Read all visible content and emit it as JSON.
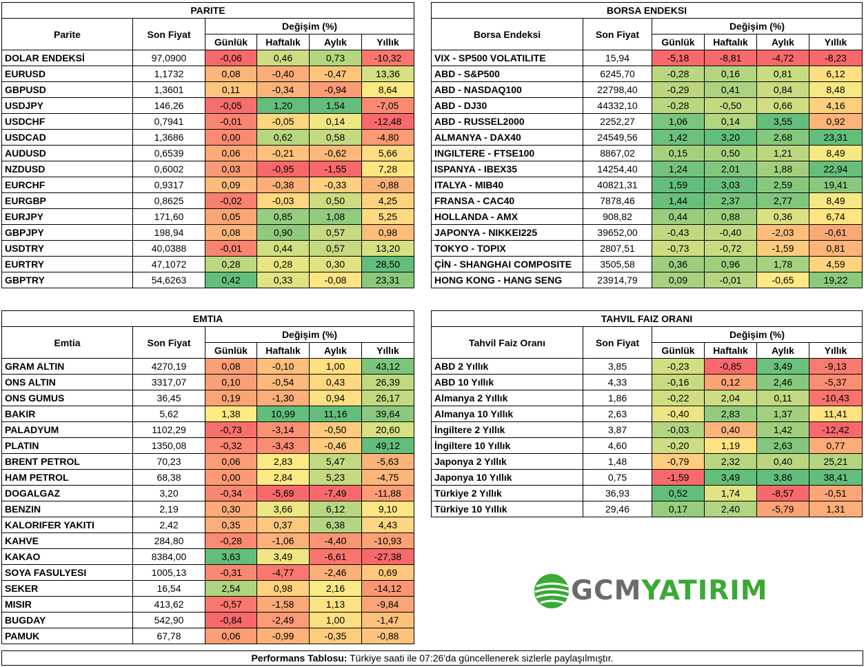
{
  "colors": {
    "red": "#f8696b",
    "yellow": "#ffeb84",
    "green": "#63be7b"
  },
  "labels": {
    "change": "Değişim (%)",
    "price": "Son Fiyat",
    "daily": "Günlük",
    "weekly": "Haftalık",
    "monthly": "Aylık",
    "yearly": "Yıllık"
  },
  "parite": {
    "title": "PARITE",
    "col_name": "Parite",
    "rows": [
      [
        "DOLAR ENDEKSİ",
        "97,0900",
        "-0,06",
        "0,46",
        "0,73",
        "-10,32"
      ],
      [
        "EURUSD",
        "1,1732",
        "0,08",
        "-0,40",
        "-0,47",
        "13,36"
      ],
      [
        "GBPUSD",
        "1,3601",
        "0,11",
        "-0,34",
        "-0,94",
        "8,64"
      ],
      [
        "USDJPY",
        "146,26",
        "-0,05",
        "1,20",
        "1,54",
        "-7,05"
      ],
      [
        "USDCHF",
        "0,7941",
        "-0,01",
        "-0,05",
        "0,14",
        "-12,48"
      ],
      [
        "USDCAD",
        "1,3686",
        "0,00",
        "0,62",
        "0,58",
        "-4,80"
      ],
      [
        "AUDUSD",
        "0,6539",
        "0,06",
        "-0,21",
        "-0,62",
        "5,66"
      ],
      [
        "NZDUSD",
        "0,6002",
        "0,03",
        "-0,95",
        "-1,55",
        "7,28"
      ],
      [
        "EURCHF",
        "0,9317",
        "0,09",
        "-0,38",
        "-0,33",
        "-0,88"
      ],
      [
        "EURGBP",
        "0,8625",
        "-0,02",
        "-0,03",
        "0,50",
        "4,25"
      ],
      [
        "EURJPY",
        "171,60",
        "0,05",
        "0,85",
        "1,08",
        "5,25"
      ],
      [
        "GBPJPY",
        "198,94",
        "0,08",
        "0,90",
        "0,57",
        "0,98"
      ],
      [
        "USDTRY",
        "40,0388",
        "-0,01",
        "0,44",
        "0,57",
        "13,20"
      ],
      [
        "EURTRY",
        "47,1072",
        "0,28",
        "0,28",
        "0,30",
        "28,50"
      ],
      [
        "GBPTRY",
        "54,6263",
        "0,42",
        "0,33",
        "-0,08",
        "23,31"
      ]
    ]
  },
  "borsa": {
    "title": "BORSA ENDEKSI",
    "col_name": "Borsa Endeksi",
    "rows": [
      [
        "VIX  - SP500 VOLATILITE",
        "15,94",
        "-5,18",
        "-8,81",
        "-4,72",
        "-8,23"
      ],
      [
        "ABD - S&P500",
        "6245,70",
        "-0,28",
        "0,16",
        "0,81",
        "6,12"
      ],
      [
        "ABD - NASDAQ100",
        "22798,40",
        "-0,29",
        "0,41",
        "0,84",
        "8,48"
      ],
      [
        "ABD - DJ30",
        "44332,10",
        "-0,28",
        "-0,50",
        "0,66",
        "4,16"
      ],
      [
        "ABD - RUSSEL2000",
        "2252,27",
        "1,06",
        "0,14",
        "3,55",
        "0,92"
      ],
      [
        "ALMANYA - DAX40",
        "24549,56",
        "1,42",
        "3,20",
        "2,68",
        "23,31"
      ],
      [
        "INGILTERE - FTSE100",
        "8867,02",
        "0,15",
        "0,50",
        "1,21",
        "8,49"
      ],
      [
        "ISPANYA - IBEX35",
        "14254,40",
        "1,24",
        "2,01",
        "1,88",
        "22,94"
      ],
      [
        "ITALYA - MIB40",
        "40821,31",
        "1,59",
        "3,03",
        "2,59",
        "19,41"
      ],
      [
        "FRANSA - CAC40",
        "7878,46",
        "1,44",
        "2,37",
        "2,77",
        "8,49"
      ],
      [
        "HOLLANDA - AMX",
        "908,82",
        "0,44",
        "0,88",
        "0,36",
        "6,74"
      ],
      [
        "JAPONYA - NIKKEI225",
        "39652,00",
        "-0,43",
        "-0,40",
        "-2,03",
        "-0,61"
      ],
      [
        "TOKYO - TOPIX",
        "2807,51",
        "-0,73",
        "-0,72",
        "-1,59",
        "0,81"
      ],
      [
        "ÇİN - SHANGHAI COMPOSITE",
        "3505,58",
        "0,36",
        "0,96",
        "1,78",
        "4,59"
      ],
      [
        "HONG KONG - HANG SENG",
        "23914,79",
        "0,09",
        "-0,01",
        "-0,65",
        "19,22"
      ]
    ]
  },
  "emtia": {
    "title": "EMTIA",
    "col_name": "Emtia",
    "rows": [
      [
        "GRAM ALTIN",
        "4270,19",
        "0,08",
        "-0,10",
        "1,00",
        "43,12"
      ],
      [
        "ONS ALTIN",
        "3317,07",
        "0,10",
        "-0,54",
        "0,43",
        "26,39"
      ],
      [
        "ONS GUMUS",
        "36,45",
        "0,19",
        "-1,30",
        "0,94",
        "26,17"
      ],
      [
        "BAKIR",
        "5,62",
        "1,38",
        "10,99",
        "11,16",
        "39,64"
      ],
      [
        "PALADYUM",
        "1102,29",
        "-0,73",
        "-3,14",
        "-0,50",
        "20,60"
      ],
      [
        "PLATIN",
        "1350,08",
        "-0,32",
        "-3,43",
        "-0,46",
        "49,12"
      ],
      [
        "BRENT PETROL",
        "70,23",
        "0,06",
        "2,83",
        "5,47",
        "-5,63"
      ],
      [
        "HAM PETROL",
        "68,38",
        "0,00",
        "2,84",
        "5,23",
        "-4,75"
      ],
      [
        "DOGALGAZ",
        "3,20",
        "-0,34",
        "-5,69",
        "-7,49",
        "-11,88"
      ],
      [
        "BENZIN",
        "2,19",
        "0,30",
        "3,66",
        "6,12",
        "9,10"
      ],
      [
        "KALORIFER YAKITI",
        "2,42",
        "0,35",
        "0,37",
        "6,38",
        "4,43"
      ],
      [
        "KAHVE",
        "284,80",
        "-0,28",
        "-1,06",
        "-4,40",
        "-10,93"
      ],
      [
        "KAKAO",
        "8384,00",
        "3,63",
        "3,49",
        "-6,61",
        "-27,38"
      ],
      [
        "SOYA FASULYESI",
        "1005,13",
        "-0,31",
        "-4,77",
        "-2,46",
        "0,69"
      ],
      [
        "SEKER",
        "16,54",
        "2,54",
        "0,98",
        "2,16",
        "-14,12"
      ],
      [
        "MISIR",
        "413,62",
        "-0,57",
        "-1,58",
        "1,13",
        "-9,84"
      ],
      [
        "BUGDAY",
        "542,90",
        "-0,84",
        "-2,49",
        "1,00",
        "-1,47"
      ],
      [
        "PAMUK",
        "67,78",
        "0,06",
        "-0,99",
        "-0,35",
        "-0,88"
      ]
    ]
  },
  "tahvil": {
    "title": "TAHVIL FAIZ ORANI",
    "col_name": "Tahvil Faiz Oranı",
    "rows": [
      [
        "ABD 2 Yıllık",
        "3,85",
        "-0,23",
        "-0,85",
        "3,49",
        "-9,13"
      ],
      [
        "ABD 10 Yıllık",
        "4,33",
        "-0,16",
        "0,12",
        "2,46",
        "-5,37"
      ],
      [
        "Almanya 2 Yıllık",
        "1,86",
        "-0,22",
        "2,04",
        "0,11",
        "-10,43"
      ],
      [
        "Almanya 10 Yıllık",
        "2,63",
        "-0,40",
        "2,83",
        "1,37",
        "11,41"
      ],
      [
        "İngiltere 2 Yıllık",
        "3,87",
        "-0,03",
        "0,40",
        "1,42",
        "-12,42"
      ],
      [
        "İngiltere 10 Yıllık",
        "4,60",
        "-0,20",
        "1,19",
        "2,63",
        "0,77"
      ],
      [
        "Japonya 2 Yıllık",
        "1,48",
        "-0,79",
        "2,32",
        "0,40",
        "25,21"
      ],
      [
        "Japonya 10 Yıllık",
        "0,75",
        "-1,59",
        "3,49",
        "3,86",
        "38,41"
      ],
      [
        "Türkiye 2 Yıllık",
        "36,93",
        "0,52",
        "1,74",
        "-8,57",
        "-0,51"
      ],
      [
        "Türkiye 10 Yıllık",
        "29,46",
        "0,17",
        "2,40",
        "-5,79",
        "1,31"
      ]
    ]
  },
  "footer": {
    "bold": "Performans Tablosu:",
    "text": " Türkiye saati ile 07:26'da güncellenerek sizlerle paylaşılmıştır."
  },
  "logo": {
    "part1": "GCM",
    "part2": "YATIRIM"
  }
}
